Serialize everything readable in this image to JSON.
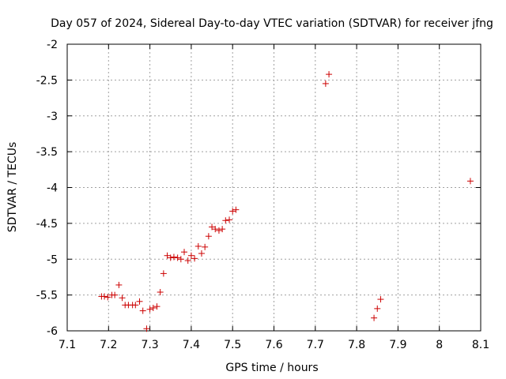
{
  "chart_data": {
    "type": "scatter",
    "title": "Day 057 of 2024, Sidereal Day-to-day VTEC variation (SDTVAR) for receiver jfng",
    "xlabel": "GPS time / hours",
    "ylabel": "SDTVAR / TECUs",
    "xlim": [
      7.1,
      8.1
    ],
    "ylim": [
      -6,
      -2
    ],
    "xticks": [
      7.1,
      7.2,
      7.3,
      7.4,
      7.5,
      7.6,
      7.7,
      7.8,
      7.9,
      8.0,
      8.1
    ],
    "xtick_labels": [
      "7.1",
      "7.2",
      "7.3",
      "7.4",
      "7.5",
      "7.6",
      "7.7",
      "7.8",
      "7.9",
      "8",
      "8.1"
    ],
    "yticks": [
      -2,
      -2.5,
      -3,
      -3.5,
      -4,
      -4.5,
      -5,
      -5.5,
      -6
    ],
    "ytick_labels": [
      "-2",
      "-2.5",
      "-3",
      "-3.5",
      "-4",
      "-4.5",
      "-5",
      "-5.5",
      "-6"
    ],
    "grid": true,
    "marker": "+",
    "color": "#cc0000",
    "series": [
      {
        "name": "SDTVAR",
        "x": [
          7.183,
          7.19,
          7.198,
          7.208,
          7.215,
          7.225,
          7.233,
          7.24,
          7.248,
          7.258,
          7.265,
          7.275,
          7.283,
          7.292,
          7.3,
          7.308,
          7.317,
          7.325,
          7.333,
          7.342,
          7.35,
          7.358,
          7.367,
          7.375,
          7.383,
          7.392,
          7.4,
          7.408,
          7.417,
          7.425,
          7.433,
          7.442,
          7.45,
          7.458,
          7.467,
          7.475,
          7.483,
          7.492,
          7.5,
          7.508,
          7.725,
          7.733,
          7.842,
          7.85,
          7.858,
          8.075
        ],
        "y": [
          -5.52,
          -5.52,
          -5.53,
          -5.5,
          -5.5,
          -5.36,
          -5.54,
          -5.64,
          -5.64,
          -5.64,
          -5.64,
          -5.59,
          -5.72,
          -5.97,
          -5.7,
          -5.68,
          -5.66,
          -5.46,
          -5.2,
          -4.95,
          -4.98,
          -4.97,
          -4.98,
          -5.0,
          -4.9,
          -5.02,
          -4.95,
          -4.99,
          -4.82,
          -4.92,
          -4.83,
          -4.68,
          -4.55,
          -4.58,
          -4.6,
          -4.58,
          -4.46,
          -4.45,
          -4.33,
          -4.31,
          -2.55,
          -2.42,
          -5.82,
          -5.69,
          -5.56,
          -3.91
        ]
      }
    ]
  }
}
